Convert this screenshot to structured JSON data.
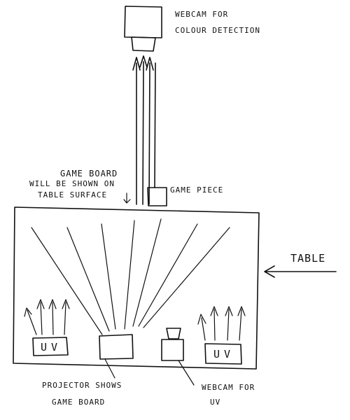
{
  "labels": {
    "webcam_colour": [
      "WEBCAM FOR",
      "COLOUR DETECTION"
    ],
    "game_board_note": [
      "GAME BOARD",
      "WILL BE SHOWN ON",
      "TABLE SURFACE"
    ],
    "game_piece": "GAME PIECE",
    "table": "TABLE",
    "uv_left": "UV",
    "uv_right": "UV",
    "projector": [
      "PROJECTOR SHOWS",
      "GAME BOARD"
    ],
    "webcam_uv": [
      "WEBCAM FOR",
      "UV"
    ]
  },
  "colors": {
    "ink": "#111111",
    "paper": "#ffffff"
  }
}
